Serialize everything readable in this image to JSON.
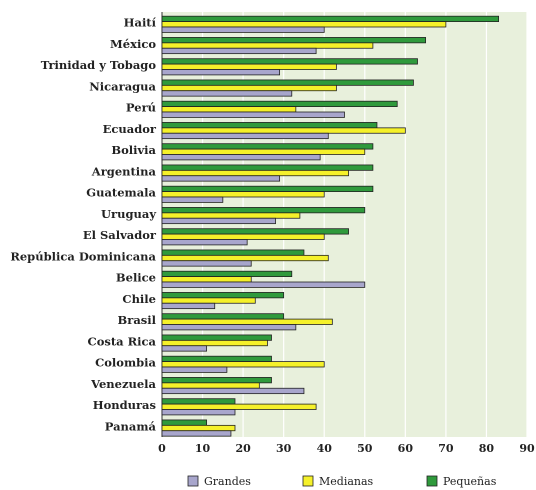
{
  "chart_data": {
    "type": "bar",
    "orientation": "horizontal",
    "categories": [
      "Haití",
      "México",
      "Trinidad y Tobago",
      "Nicaragua",
      "Perú",
      "Ecuador",
      "Bolivia",
      "Argentina",
      "Guatemala",
      "Uruguay",
      "El Salvador",
      "República Dominicana",
      "Belice",
      "Chile",
      "Brasil",
      "Costa Rica",
      "Colombia",
      "Venezuela",
      "Honduras",
      "Panamá"
    ],
    "series": [
      {
        "name": "Grandes",
        "color": "#a8a6cc",
        "values": [
          40,
          38,
          29,
          32,
          45,
          41,
          39,
          29,
          15,
          28,
          21,
          22,
          50,
          13,
          33,
          11,
          16,
          35,
          18,
          17
        ]
      },
      {
        "name": "Medianas",
        "color": "#f5f12a",
        "values": [
          70,
          52,
          43,
          43,
          33,
          60,
          50,
          46,
          40,
          34,
          40,
          41,
          22,
          23,
          42,
          26,
          40,
          24,
          38,
          18
        ]
      },
      {
        "name": "Pequeñas",
        "color": "#2f9a3c",
        "values": [
          83,
          65,
          63,
          62,
          58,
          53,
          52,
          52,
          52,
          50,
          46,
          35,
          32,
          30,
          30,
          27,
          27,
          27,
          18,
          11
        ]
      }
    ],
    "xlim": [
      0,
      90
    ],
    "xticks": [
      0,
      10,
      20,
      30,
      40,
      50,
      60,
      70,
      80,
      90
    ],
    "grid": "vertical",
    "legend_position": "bottom",
    "plot_background": "#e8f0dc",
    "title": "",
    "xlabel": "",
    "ylabel": ""
  }
}
